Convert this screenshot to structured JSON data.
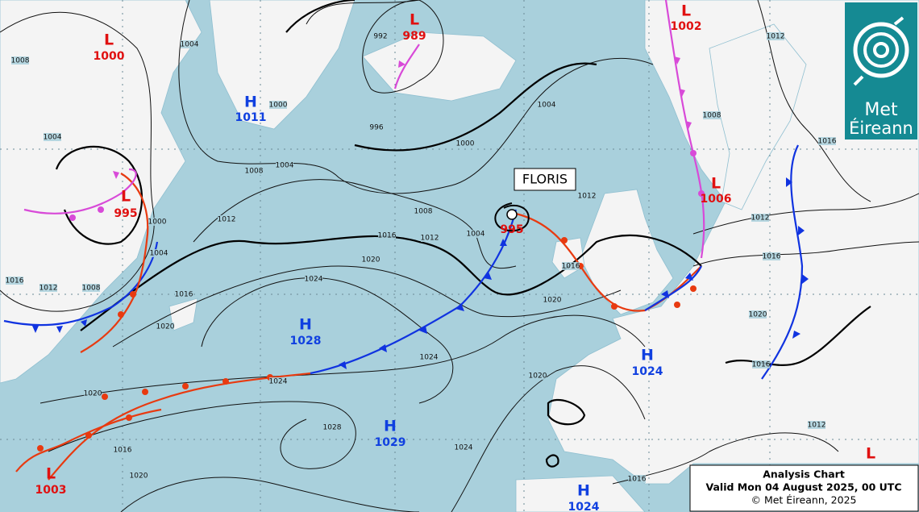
{
  "pressure_centres": [
    {
      "kind": "L",
      "value": 1000
    },
    {
      "kind": "L",
      "value": 989
    },
    {
      "kind": "L",
      "value": 1002
    },
    {
      "kind": "H",
      "value": 1011
    },
    {
      "kind": "L",
      "value": 995
    },
    {
      "value": 995
    },
    {
      "kind": "L",
      "value": 1006
    },
    {
      "kind": "H",
      "value": 1028
    },
    {
      "kind": "H",
      "value": 1024
    },
    {
      "kind": "H",
      "value": 1029
    },
    {
      "kind": "L",
      "value": 1003
    },
    {
      "kind": "H",
      "value": 1024
    },
    {
      "kind": "L"
    }
  ],
  "storm_name": "FLORIS",
  "isobar_labels": [
    1008,
    1004,
    1004,
    1000,
    992,
    996,
    1000,
    1004,
    1004,
    1008,
    1008,
    1004,
    1012,
    1012,
    1016,
    1020,
    1024,
    1000,
    1004,
    1008,
    1012,
    1016,
    1016,
    1020,
    1020,
    1016,
    1012,
    1008,
    1012,
    1016,
    1016,
    1012,
    1020,
    1016,
    1012,
    1024,
    1024,
    1020,
    1028,
    1024,
    1020,
    1016,
    1020,
    1016
  ],
  "info": {
    "title": "Analysis Chart",
    "valid": "Valid Mon 04 August 2025, 00 UTC",
    "copyright": "© Met Éireann, 2025"
  },
  "logo": {
    "line1": "Met",
    "line2": "Éireann"
  }
}
